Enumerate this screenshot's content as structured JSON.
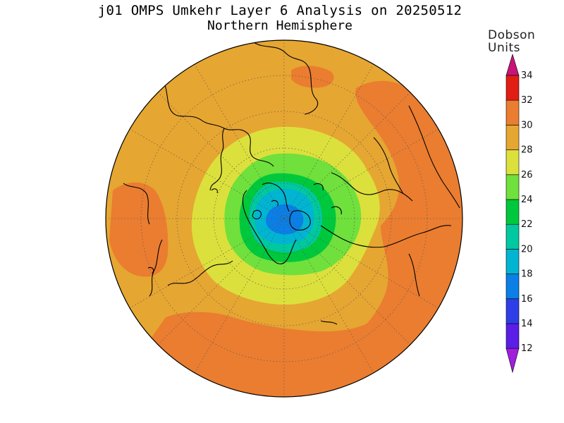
{
  "title": {
    "line1": "j01 OMPS Umkehr Layer 6 Analysis on 20250512",
    "line2": "Northern Hemisphere"
  },
  "colorbar": {
    "unit_line1": "Dobson",
    "unit_line2": "Units",
    "ticks": [
      "12",
      "14",
      "16",
      "18",
      "20",
      "22",
      "24",
      "26",
      "28",
      "30",
      "32",
      "34"
    ],
    "colors": [
      "#8a1fd6",
      "#5a1ee6",
      "#2e3fe8",
      "#0a7fe6",
      "#00b4d2",
      "#00c8a0",
      "#00c83c",
      "#70e03c",
      "#dce03c",
      "#e6a632",
      "#ea7d30",
      "#e01e14",
      "#c81478"
    ],
    "low_cap_color": "#a01edc",
    "high_cap_color": "#c81478"
  },
  "map": {
    "projection": "north polar stereographic",
    "field_colors": {
      "orange_30_32": "#ea7d30",
      "gold_28_30": "#e6a632",
      "yellow_26_28": "#dce03c",
      "lightgreen_24_26": "#70e03c",
      "green_22_24": "#00c83c",
      "teal_20_22": "#00c8a0",
      "cyan_18_20": "#00b4d2",
      "blue_16_18": "#0a7fe6"
    }
  }
}
